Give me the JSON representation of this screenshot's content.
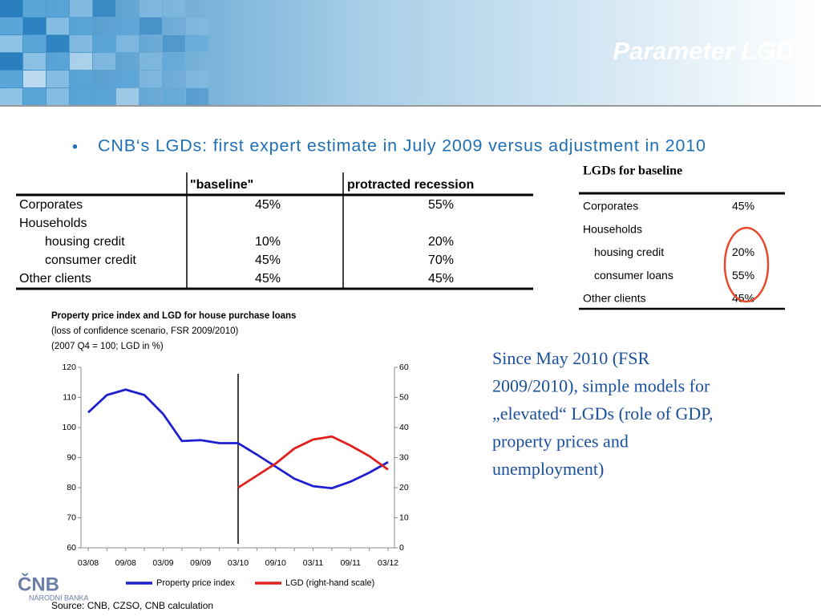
{
  "header": {
    "title": "Parameter LGD"
  },
  "bullet": "CNB‘s LGDs: first expert estimate in July 2009 versus adjustment in 2010",
  "table": {
    "columns": [
      "\"baseline\"",
      "protracted recession"
    ],
    "rows": [
      {
        "label": "Corporates",
        "values": [
          "45%",
          "55%"
        ]
      },
      {
        "label": "Households",
        "sub": [
          {
            "label": "housing credit",
            "values": [
              "10%",
              "20%"
            ]
          },
          {
            "label": "consumer credit",
            "values": [
              "45%",
              "70%"
            ]
          }
        ]
      },
      {
        "label": "Other clients",
        "values": [
          "45%",
          "45%"
        ]
      }
    ]
  },
  "table2": {
    "title": "LGDs for baseline",
    "rows": [
      {
        "label": "Corporates",
        "value": "45%"
      },
      {
        "label": "Households",
        "sub": [
          {
            "label": "housing credit",
            "value": "20%"
          },
          {
            "label": "consumer loans",
            "value": "55%"
          }
        ]
      },
      {
        "label": "Other clients",
        "value": "45%"
      }
    ]
  },
  "chart_data": {
    "type": "line",
    "title": "Property price index and LGD for house purchase loans",
    "subtitle": [
      "(loss of confidence scenario, FSR 2009/2010)",
      "(2007 Q4 = 100; LGD in %)"
    ],
    "categories": [
      "03/08",
      null,
      "09/08",
      null,
      "03/09",
      null,
      "09/09",
      null,
      "03/10",
      null,
      "09/10",
      null,
      "03/11",
      null,
      "09/11",
      null,
      "03/12"
    ],
    "series": [
      {
        "name": "Property price index",
        "color": "#1f1fd0",
        "values": [
          105,
          110.8,
          112.6,
          110.8,
          104.5,
          95.5,
          95.8,
          94.8,
          94.8,
          91,
          87,
          83,
          80.5,
          79.8,
          82,
          85,
          88.5
        ]
      },
      {
        "name": "LGD (right-hand scale)",
        "color": "#e0201c",
        "axis": "y2",
        "values": [
          null,
          null,
          null,
          null,
          null,
          null,
          null,
          null,
          20,
          24,
          28,
          33,
          36,
          37,
          34,
          30.5,
          26
        ]
      }
    ],
    "ylim": [
      60,
      120
    ],
    "yticks": [
      60,
      70,
      80,
      90,
      100,
      110,
      120
    ],
    "y2lim": [
      0,
      60
    ],
    "y2ticks": [
      0,
      10,
      20,
      30,
      40,
      50,
      60
    ]
  },
  "note": "Since May 2010 (FSR 2009/2010), simple models for „elevated“ LGDs (role of GDP, property prices and unemployment)",
  "source": "Source: CNB, CZSO, CNB calculation",
  "logo": {
    "mark": "ČNB",
    "name": "NÁRODNÍ BANKA"
  }
}
